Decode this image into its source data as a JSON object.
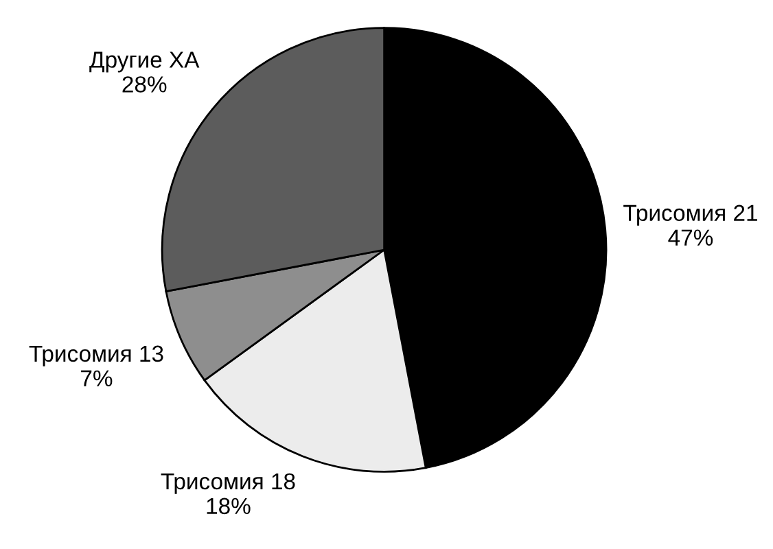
{
  "chart_data": {
    "type": "pie",
    "categories": [
      "Трисомия 21",
      "Трисомия 18",
      "Трисомия 13",
      "Другие ХА"
    ],
    "values": [
      47,
      18,
      7,
      28
    ],
    "value_labels": [
      "47%",
      "18%",
      "7%",
      "28%"
    ],
    "colors": [
      "#000000",
      "#ececec",
      "#8e8e8e",
      "#5c5c5c"
    ],
    "legend": false
  }
}
